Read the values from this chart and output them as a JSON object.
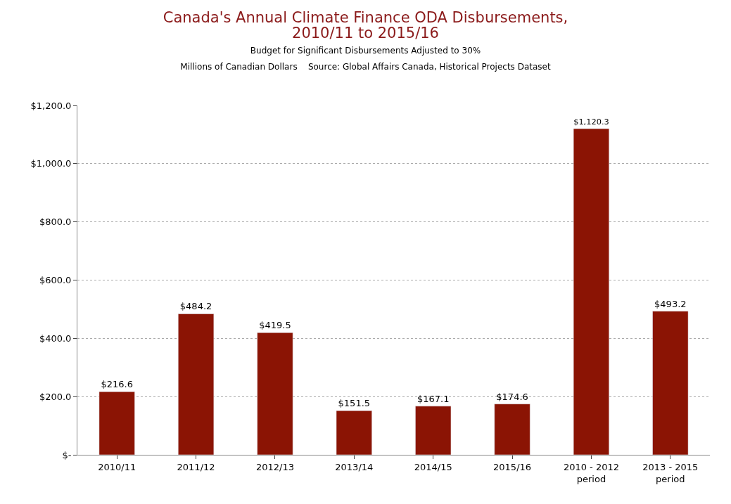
{
  "chart_data": {
    "type": "bar",
    "title": "Canada's Annual Climate Finance ODA Disbursements,\n2010/11 to 2015/16",
    "subtitle": "Budget for Significant Disbursements Adjusted to 30%\nMillions of Canadian Dollars    Source: Global Affairs Canada, Historical Projects Dataset",
    "categories": [
      "2010/11",
      "2011/12",
      "2012/13",
      "2013/14",
      "2014/15",
      "2015/16",
      "2010 - 2012\nperiod",
      "2013 - 2015\nperiod"
    ],
    "values": [
      216.6,
      484.2,
      419.5,
      151.5,
      167.1,
      174.6,
      1120.3,
      493.2
    ],
    "value_labels": [
      "$216.6",
      "$484.2",
      "$419.5",
      "$151.5",
      "$167.1",
      "$174.6",
      "$1,120.3",
      "$493.2"
    ],
    "color": "#8b1404",
    "ylim": [
      0,
      1200
    ],
    "yticks": [
      {
        "value": 0,
        "label": "$-"
      },
      {
        "value": 200,
        "label": "$200.0"
      },
      {
        "value": 400,
        "label": "$400.0"
      },
      {
        "value": 600,
        "label": "$600.0"
      },
      {
        "value": 800,
        "label": "$800.0"
      },
      {
        "value": 1000,
        "label": "$1,000.0"
      },
      {
        "value": 1200,
        "label": "$1,200.0"
      }
    ],
    "grid": "y"
  }
}
